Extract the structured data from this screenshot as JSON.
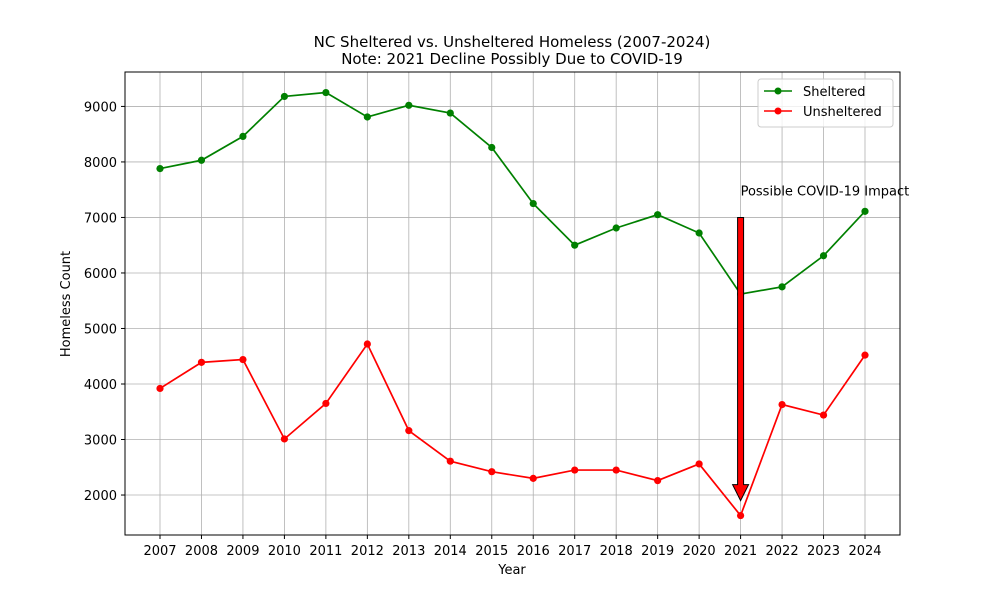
{
  "chart_data": {
    "type": "line",
    "title": "NC Sheltered vs. Unsheltered Homeless (2007-2024)",
    "subtitle": "Note: 2021 Decline Possibly Due to COVID-19",
    "xlabel": "Year",
    "ylabel": "Homeless Count",
    "categories": [
      "2007",
      "2008",
      "2009",
      "2010",
      "2011",
      "2012",
      "2013",
      "2014",
      "2015",
      "2016",
      "2017",
      "2018",
      "2019",
      "2020",
      "2021",
      "2022",
      "2023",
      "2024"
    ],
    "yticks": [
      2000,
      3000,
      4000,
      5000,
      6000,
      7000,
      8000,
      9000
    ],
    "ylim": [
      1280,
      9620
    ],
    "grid": true,
    "legend_position": "top-right",
    "series": [
      {
        "name": "Sheltered",
        "color": "#008000",
        "values": [
          7880,
          8030,
          8460,
          9180,
          9250,
          8810,
          9020,
          8880,
          8260,
          7250,
          6500,
          6810,
          7050,
          6720,
          5620,
          5750,
          6310,
          7110
        ]
      },
      {
        "name": "Unsheltered",
        "color": "#ff0000",
        "values": [
          3920,
          4390,
          4440,
          3010,
          3650,
          4720,
          3160,
          2610,
          2420,
          2300,
          2450,
          2450,
          2260,
          2560,
          1630,
          3630,
          3440,
          4520
        ]
      }
    ],
    "annotations": [
      {
        "text": "Possible COVID-19 Impact",
        "arrow_x": "2021",
        "arrow_from_y": 7000,
        "arrow_to_y": 1900,
        "arrow_color": "#ff0000"
      }
    ]
  }
}
